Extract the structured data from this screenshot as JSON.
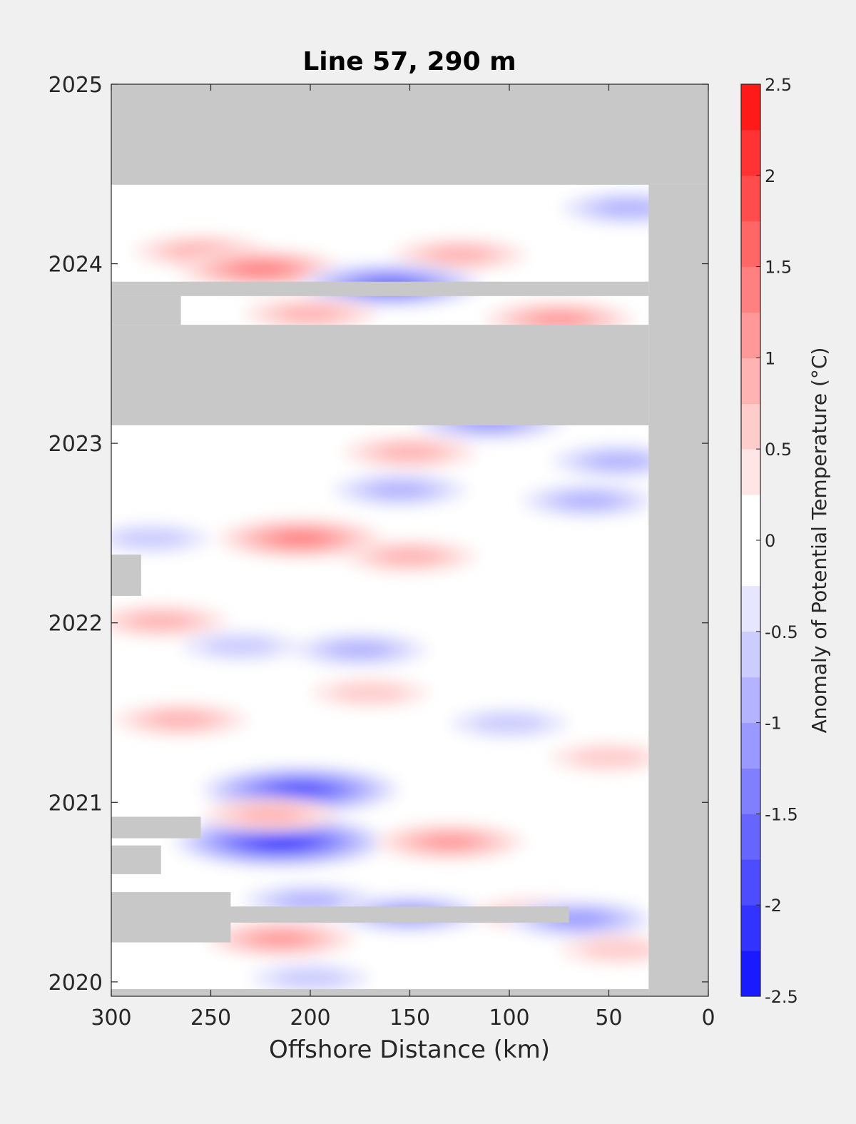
{
  "chart_data": {
    "type": "heatmap",
    "title": "Line 57, 290 m",
    "xlabel": "Offshore Distance (km)",
    "ylabel": "",
    "xlim": [
      300,
      0
    ],
    "x_reversed": true,
    "ylim": [
      2019.92,
      2025
    ],
    "x_ticks": [
      "300",
      "250",
      "200",
      "150",
      "100",
      "50",
      "0"
    ],
    "y_ticks": [
      "2020",
      "2021",
      "2022",
      "2023",
      "2024",
      "2025"
    ],
    "colorbar": {
      "label": "Anomaly of Potential Temperature (°C)",
      "range": [
        -2.5,
        2.5
      ],
      "step": 0.25,
      "ticks": [
        "2.5",
        "2",
        "1.5",
        "1",
        "0.5",
        "0",
        "-0.5",
        "-1",
        "-1.5",
        "-2",
        "-2.5"
      ],
      "colors_low_to_high": [
        "#0000ff",
        "#1a1aff",
        "#3333ff",
        "#4d4dff",
        "#6666ff",
        "#8080ff",
        "#9999ff",
        "#b3b3ff",
        "#ccccff",
        "#e6e6ff",
        "#ffffff",
        "#ffffff",
        "#ffe6e6",
        "#ffcccc",
        "#ffb3b3",
        "#ff9999",
        "#ff8080",
        "#ff6666",
        "#ff4d4d",
        "#ff3333",
        "#ff1a1a",
        "#ff0000"
      ]
    },
    "no_data_color": "#c8c8c8",
    "no_data_regions": [
      {
        "x": [
          300,
          0
        ],
        "y": [
          2024.44,
          2025
        ]
      },
      {
        "x": [
          30,
          0
        ],
        "y": [
          2019.92,
          2024.44
        ]
      },
      {
        "x": [
          300,
          30
        ],
        "y": [
          2019.92,
          2019.96
        ]
      },
      {
        "x": [
          300,
          30
        ],
        "y": [
          2023.82,
          2023.9
        ]
      },
      {
        "x": [
          300,
          265
        ],
        "y": [
          2023.66,
          2023.82
        ]
      },
      {
        "x": [
          300,
          30
        ],
        "y": [
          2023.1,
          2023.66
        ]
      },
      {
        "x": [
          300,
          285
        ],
        "y": [
          2022.15,
          2022.38
        ]
      },
      {
        "x": [
          300,
          255
        ],
        "y": [
          2020.8,
          2020.92
        ]
      },
      {
        "x": [
          300,
          275
        ],
        "y": [
          2020.6,
          2020.76
        ]
      },
      {
        "x": [
          300,
          70
        ],
        "y": [
          2020.33,
          2020.42
        ]
      },
      {
        "x": [
          300,
          240
        ],
        "y": [
          2020.22,
          2020.5
        ]
      }
    ],
    "anomaly_features": [
      {
        "x": 255,
        "y": 2024.07,
        "value": 0.75
      },
      {
        "x": 225,
        "y": 2023.97,
        "value": 1.25
      },
      {
        "x": 125,
        "y": 2024.05,
        "value": 0.75
      },
      {
        "x": 160,
        "y": 2023.88,
        "value": -1.5
      },
      {
        "x": 200,
        "y": 2023.72,
        "value": 0.75
      },
      {
        "x": 75,
        "y": 2023.69,
        "value": 1.0
      },
      {
        "x": 40,
        "y": 2024.31,
        "value": -0.75
      },
      {
        "x": 110,
        "y": 2023.12,
        "value": -1.0
      },
      {
        "x": 150,
        "y": 2022.95,
        "value": 0.75
      },
      {
        "x": 205,
        "y": 2022.47,
        "value": 1.25
      },
      {
        "x": 280,
        "y": 2022.47,
        "value": -0.5
      },
      {
        "x": 275,
        "y": 2022.01,
        "value": 0.75
      },
      {
        "x": 150,
        "y": 2022.37,
        "value": 0.75
      },
      {
        "x": 175,
        "y": 2021.85,
        "value": -0.75
      },
      {
        "x": 235,
        "y": 2021.87,
        "value": -0.5
      },
      {
        "x": 265,
        "y": 2021.46,
        "value": 0.75
      },
      {
        "x": 170,
        "y": 2021.61,
        "value": 0.5
      },
      {
        "x": 50,
        "y": 2021.25,
        "value": 0.5
      },
      {
        "x": 205,
        "y": 2021.07,
        "value": -1.75
      },
      {
        "x": 215,
        "y": 2020.78,
        "value": -2.0
      },
      {
        "x": 130,
        "y": 2020.78,
        "value": 1.0
      },
      {
        "x": 220,
        "y": 2020.93,
        "value": 0.75
      },
      {
        "x": 200,
        "y": 2020.45,
        "value": -0.75
      },
      {
        "x": 150,
        "y": 2020.38,
        "value": -1.0
      },
      {
        "x": 215,
        "y": 2020.24,
        "value": 1.0
      },
      {
        "x": 85,
        "y": 2020.38,
        "value": 0.75
      },
      {
        "x": 65,
        "y": 2020.35,
        "value": -1.0
      },
      {
        "x": 200,
        "y": 2020.02,
        "value": -0.5
      },
      {
        "x": 45,
        "y": 2020.18,
        "value": 0.5
      },
      {
        "x": 100,
        "y": 2021.44,
        "value": -0.5
      },
      {
        "x": 45,
        "y": 2022.9,
        "value": -0.75
      },
      {
        "x": 60,
        "y": 2022.68,
        "value": -0.75
      },
      {
        "x": 155,
        "y": 2022.74,
        "value": -0.75
      }
    ]
  }
}
